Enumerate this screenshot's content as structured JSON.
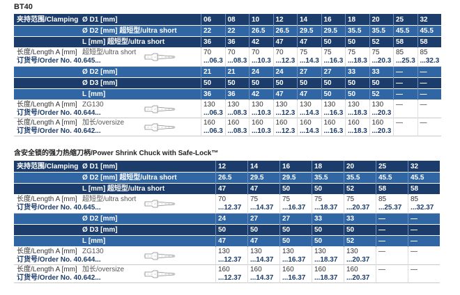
{
  "title": "BT40",
  "table1": {
    "rows": [
      {
        "label": "夹持范围/Clamping",
        "spec": "Ø D1 [mm]",
        "values": [
          "06",
          "08",
          "10",
          "12",
          "14",
          "16",
          "18",
          "20",
          "25",
          "32"
        ]
      },
      {
        "spec": "Ø D2 [mm] 超短型/ultra short",
        "values": [
          "22",
          "22",
          "26.5",
          "26.5",
          "29.5",
          "29.5",
          "35.5",
          "35.5",
          "45.5",
          "45.5"
        ]
      },
      {
        "spec": "L [mm] 超短型/ultra short",
        "values": [
          "36",
          "36",
          "42",
          "47",
          "47",
          "50",
          "50",
          "52",
          "58",
          "58"
        ]
      },
      {
        "label": [
          "长度/Length A [mm]",
          "订货号/Order No. 40.645..."
        ],
        "spec": "超短型/ultra short",
        "values": [
          [
            "70",
            "...06.3"
          ],
          [
            "70",
            "...08.3"
          ],
          [
            "70",
            "...10.3"
          ],
          [
            "70",
            "...12.3"
          ],
          [
            "75",
            "...14.3"
          ],
          [
            "75",
            "...16.3"
          ],
          [
            "75",
            "...18.3"
          ],
          [
            "75",
            "...20.3"
          ],
          [
            "85",
            "...25.3"
          ],
          [
            "85",
            "...32.3"
          ]
        ]
      },
      {
        "spec": "Ø D2 [mm]",
        "values": [
          "21",
          "21",
          "24",
          "24",
          "27",
          "27",
          "33",
          "33",
          "—",
          "—"
        ]
      },
      {
        "spec": "Ø D3 [mm]",
        "values": [
          "50",
          "50",
          "50",
          "50",
          "50",
          "50",
          "50",
          "50",
          "—",
          "—"
        ]
      },
      {
        "spec": "L [mm]",
        "values": [
          "36",
          "36",
          "42",
          "47",
          "47",
          "50",
          "50",
          "52",
          "—",
          "—"
        ]
      },
      {
        "label": [
          "长度/Length A [mm]",
          "订货号/Order No. 40.644..."
        ],
        "spec": "ZG130",
        "values": [
          [
            "130",
            "...06.3"
          ],
          [
            "130",
            "...08.3"
          ],
          [
            "130",
            "...10.3"
          ],
          [
            "130",
            "...12.3"
          ],
          [
            "130",
            "...14.3"
          ],
          [
            "130",
            "...16.3"
          ],
          [
            "130",
            "...18.3"
          ],
          [
            "130",
            "...20.3"
          ],
          [
            "—"
          ],
          [
            "—"
          ]
        ]
      },
      {
        "label": [
          "长度/Length A [mm]",
          "订货号/Order No. 40.642..."
        ],
        "spec": "加长/oversize",
        "values": [
          [
            "160",
            "...06.3"
          ],
          [
            "160",
            "...08.3"
          ],
          [
            "160",
            "...10.3"
          ],
          [
            "160",
            "...12.3"
          ],
          [
            "160",
            "...14.3"
          ],
          [
            "160",
            "...16.3"
          ],
          [
            "160",
            "...18.3"
          ],
          [
            "160",
            "...20.3"
          ],
          [
            "—"
          ],
          [
            "—"
          ]
        ]
      }
    ]
  },
  "section_title": "含安全锁的强力热缩刀柄/Power Shrink Chuck with Safe-Lock™",
  "table2": {
    "rows": [
      {
        "label": "夹持范围/Clamping",
        "spec": "Ø D1 [mm]",
        "values": [
          "12",
          "14",
          "16",
          "18",
          "20",
          "25",
          "32"
        ]
      },
      {
        "spec": "Ø D2 [mm] 超短型/ultra short",
        "values": [
          "26.5",
          "29.5",
          "29.5",
          "35.5",
          "35.5",
          "45.5",
          "45.5"
        ]
      },
      {
        "spec": "L [mm] 超短型/ultra short",
        "values": [
          "47",
          "47",
          "50",
          "50",
          "52",
          "58",
          "58"
        ]
      },
      {
        "label": [
          "长度/Length A [mm]",
          "订货号/Order No. 40.645..."
        ],
        "spec": "超短型/ultra short",
        "values": [
          [
            "70",
            "...12.37"
          ],
          [
            "75",
            "...14.37"
          ],
          [
            "75",
            "...16.37"
          ],
          [
            "75",
            "...18.37"
          ],
          [
            "75",
            "...20.37"
          ],
          [
            "85",
            "...25.37"
          ],
          [
            "85",
            "...32.37"
          ]
        ]
      },
      {
        "spec": "Ø D2 [mm]",
        "values": [
          "24",
          "27",
          "27",
          "33",
          "33",
          "—",
          "—"
        ]
      },
      {
        "spec": "Ø D3 [mm]",
        "values": [
          "50",
          "50",
          "50",
          "50",
          "50",
          "—",
          "—"
        ]
      },
      {
        "spec": "L [mm]",
        "values": [
          "47",
          "47",
          "50",
          "50",
          "52",
          "—",
          "—"
        ]
      },
      {
        "label": [
          "长度/Length A [mm]",
          "订货号/Order No. 40.644..."
        ],
        "spec": "ZG130",
        "values": [
          [
            "130",
            "...12.37"
          ],
          [
            "130",
            "...14.37"
          ],
          [
            "130",
            "...16.37"
          ],
          [
            "130",
            "...18.37"
          ],
          [
            "130",
            "...20.37"
          ],
          [
            "—"
          ],
          [
            "—"
          ]
        ]
      },
      {
        "label": [
          "长度/Length A [mm]",
          "订货号/Order No. 40.642..."
        ],
        "spec": "加长/oversize",
        "values": [
          [
            "160",
            "...12.37"
          ],
          [
            "160",
            "...14.37"
          ],
          [
            "160",
            "...16.37"
          ],
          [
            "160",
            "...18.37"
          ],
          [
            "160",
            "...20.37"
          ],
          [
            "—"
          ],
          [
            "—"
          ]
        ]
      }
    ]
  }
}
